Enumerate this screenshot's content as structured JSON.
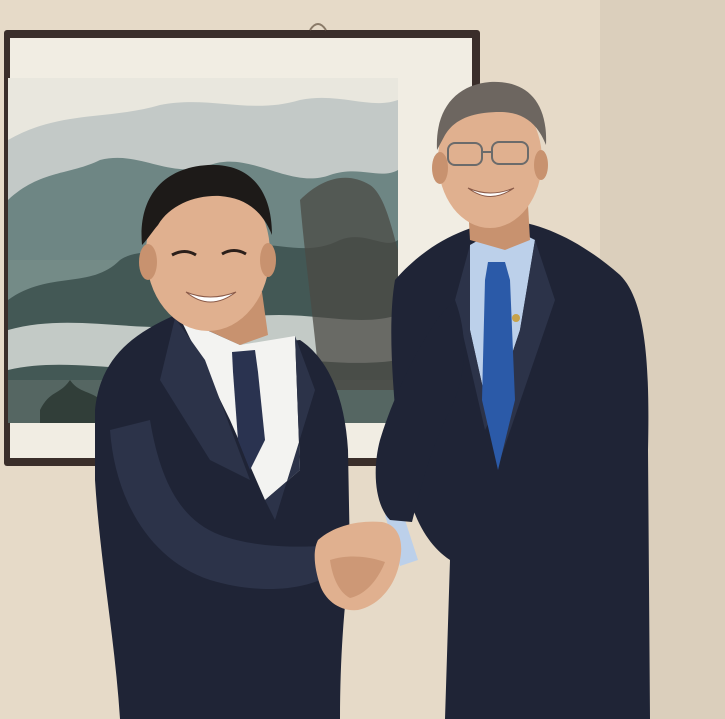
{
  "photo": {
    "subjects": [
      {
        "id": "person-left",
        "suit": "navy",
        "tie": "dark-patterned"
      },
      {
        "id": "person-right",
        "suit": "navy",
        "tie": "blue",
        "glasses": true
      }
    ],
    "artwork": {
      "type": "framed-landscape-ink-painting"
    }
  },
  "colors": {
    "wall": "#e6dac8",
    "wall_shadow": "#cfc2ae",
    "frame": "#3a2e2a",
    "mat": "#f1ede3",
    "suit": "#1f2436",
    "suit_highlight": "#2c3349",
    "shirt_left": "#f3f3f1",
    "shirt_right": "#bcd0ea",
    "tie_left": "#2a3350",
    "tie_right": "#2b5aa8",
    "skin": "#e0b08f",
    "skin_shadow": "#c8926f",
    "hair_left": "#1d1a18",
    "hair_right": "#6d6660"
  }
}
